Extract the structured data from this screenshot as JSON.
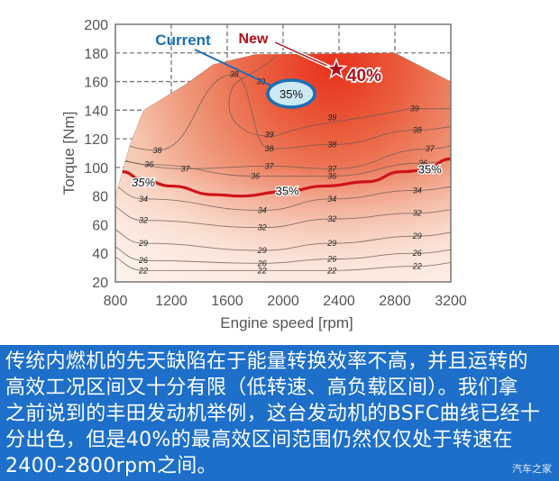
{
  "chart_data": {
    "type": "heatmap",
    "subtype": "contour",
    "title": "",
    "xlabel": "Engine speed [rpm]",
    "ylabel": "Torque [Nm]",
    "xlim": [
      800,
      3200
    ],
    "ylim": [
      20,
      200
    ],
    "x_ticks": [
      800,
      1200,
      1600,
      2000,
      2400,
      2800,
      3200
    ],
    "y_ticks": [
      20,
      40,
      60,
      80,
      100,
      120,
      140,
      160,
      180,
      200
    ],
    "grid": "dashed above max-torque envelope",
    "max_torque_envelope": [
      [
        800,
        80
      ],
      [
        900,
        115
      ],
      [
        1000,
        140
      ],
      [
        1300,
        158
      ],
      [
        1500,
        172
      ],
      [
        1800,
        179
      ],
      [
        2800,
        180
      ],
      [
        3200,
        160
      ]
    ],
    "contour_levels": [
      22,
      26,
      29,
      32,
      34,
      35,
      36,
      37,
      38,
      39
    ],
    "contour_labels": [
      {
        "level": 38,
        "x": 1650,
        "y": 165
      },
      {
        "level": 39,
        "x": 1840,
        "y": 160
      },
      {
        "level": 39,
        "x": 1900,
        "y": 123
      },
      {
        "level": 39,
        "x": 2350,
        "y": 135
      },
      {
        "level": 39,
        "x": 2940,
        "y": 141
      },
      {
        "level": 38,
        "x": 1100,
        "y": 112
      },
      {
        "level": 38,
        "x": 1900,
        "y": 113
      },
      {
        "level": 38,
        "x": 2350,
        "y": 116
      },
      {
        "level": 38,
        "x": 2960,
        "y": 126
      },
      {
        "level": 37,
        "x": 1300,
        "y": 99
      },
      {
        "level": 37,
        "x": 1900,
        "y": 101
      },
      {
        "level": 37,
        "x": 2350,
        "y": 99
      },
      {
        "level": 37,
        "x": 3050,
        "y": 113
      },
      {
        "level": 36,
        "x": 1040,
        "y": 102
      },
      {
        "level": 36,
        "x": 1800,
        "y": 94
      },
      {
        "level": 36,
        "x": 2350,
        "y": 94
      },
      {
        "level": 36,
        "x": 3000,
        "y": 103
      },
      {
        "level": 35,
        "x": 1000,
        "y": 90,
        "highlight": true
      },
      {
        "level": 35,
        "x": 2030,
        "y": 84,
        "highlight": true
      },
      {
        "level": 35,
        "x": 3050,
        "y": 99,
        "highlight": true
      },
      {
        "level": 34,
        "x": 1000,
        "y": 78
      },
      {
        "level": 34,
        "x": 1850,
        "y": 70
      },
      {
        "level": 34,
        "x": 2350,
        "y": 78
      },
      {
        "level": 34,
        "x": 2960,
        "y": 84
      },
      {
        "level": 32,
        "x": 1000,
        "y": 63
      },
      {
        "level": 32,
        "x": 1850,
        "y": 58
      },
      {
        "level": 32,
        "x": 2350,
        "y": 64
      },
      {
        "level": 32,
        "x": 2960,
        "y": 68
      },
      {
        "level": 29,
        "x": 1000,
        "y": 47
      },
      {
        "level": 29,
        "x": 1850,
        "y": 42
      },
      {
        "level": 29,
        "x": 2350,
        "y": 47
      },
      {
        "level": 29,
        "x": 2960,
        "y": 52
      },
      {
        "level": 26,
        "x": 1000,
        "y": 35
      },
      {
        "level": 26,
        "x": 1850,
        "y": 33
      },
      {
        "level": 26,
        "x": 2350,
        "y": 36
      },
      {
        "level": 26,
        "x": 2960,
        "y": 40
      },
      {
        "level": 22,
        "x": 1000,
        "y": 28
      },
      {
        "level": 22,
        "x": 1850,
        "y": 28
      },
      {
        "level": 22,
        "x": 2350,
        "y": 28
      },
      {
        "level": 22,
        "x": 2960,
        "y": 31
      }
    ],
    "highlight_line_35": [
      [
        850,
        97
      ],
      [
        1000,
        91
      ],
      [
        1200,
        87
      ],
      [
        1500,
        81
      ],
      [
        1700,
        80
      ],
      [
        2000,
        83
      ],
      [
        2300,
        87
      ],
      [
        2600,
        90
      ],
      [
        2850,
        97
      ],
      [
        3000,
        98
      ],
      [
        3200,
        106
      ]
    ],
    "annotations": [
      {
        "label": "Current",
        "value": "35%",
        "x": 2100,
        "y": 146,
        "color": "#1b6fb5"
      },
      {
        "label": "New",
        "value": "40%",
        "x": 2380,
        "y": 168,
        "color": "#b0121b",
        "marker": "star"
      }
    ],
    "colors": {
      "high": "#e8341c",
      "mid": "#ec8566",
      "low": "#fbe6dc",
      "line35": "#d0121b",
      "current": "#1b6fb5",
      "new": "#b0121b"
    }
  },
  "labels": {
    "current": "Current",
    "new": "New",
    "current_value": "35%",
    "new_value": "40%",
    "line35_left": "35%",
    "line35_mid": "35%",
    "line35_right": "35%",
    "xlabel": "Engine speed [rpm]",
    "ylabel": "Torque [Nm]"
  },
  "caption": {
    "text": "传统内燃机的先天缺陷在于能量转换效率不高，并且运转的高效工况区间又十分有限（低转速、高负载区间）。我们拿之前说到的丰田发动机举例，这台发动机的BSFC曲线已经十分出色，但是40%的最高效区间范围仍然仅仅处于转速在2400-2800rpm之间。",
    "lines": [
      "传统内燃机的先天缺陷在于能量转换效率不高，并且运转的",
      "高效工况区间又十分有限（低转速、高负载区间）。我们拿",
      "之前说到的丰田发动机举例，这台发动机的BSFC曲线已经十",
      "分出色，但是40%的最高效区间范围仍然仅仅处于转速在",
      "2400-2800rpm之间。"
    ],
    "watermark": "汽车之家",
    "background": "#1d6fca"
  }
}
